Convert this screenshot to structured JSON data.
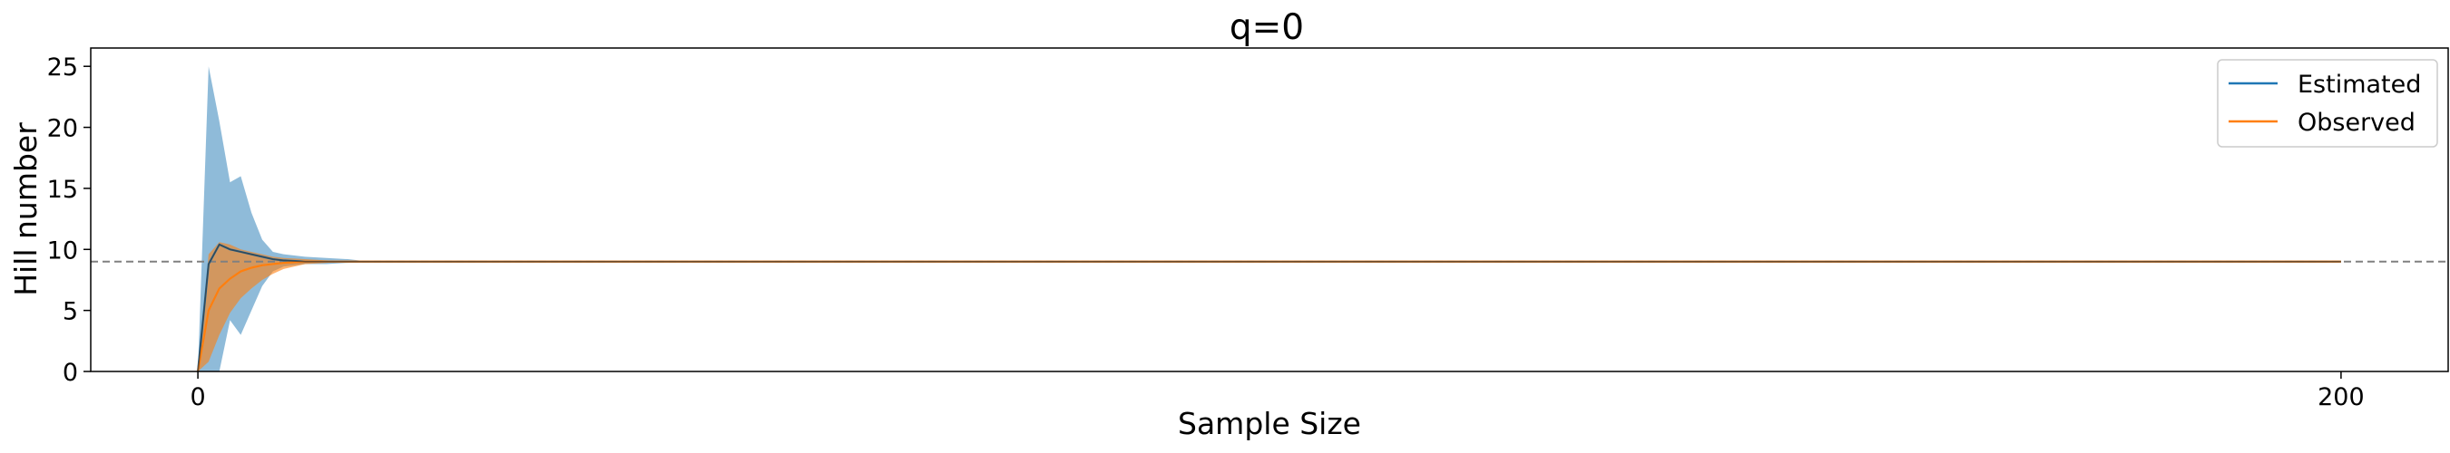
{
  "chart_data": {
    "type": "line",
    "title": "q=0",
    "xlabel": "Sample Size",
    "ylabel": "Hill number",
    "xlim": [
      -10,
      210
    ],
    "ylim": [
      0,
      26.5
    ],
    "xticks": [
      0,
      200
    ],
    "yticks": [
      0,
      5,
      10,
      15,
      20,
      25
    ],
    "reference_line": {
      "y": 9,
      "style": "dashed",
      "color": "#808080"
    },
    "legend": {
      "placement": "top-right",
      "entries": [
        "Estimated",
        "Observed"
      ]
    },
    "series": [
      {
        "name": "Estimated",
        "color": "#1f77b4",
        "band_color": "#1f77b4",
        "band_opacity": 0.5,
        "x": [
          0,
          1,
          2,
          3,
          4,
          5,
          6,
          7,
          8,
          10,
          12,
          14,
          16,
          200
        ],
        "y": [
          0,
          8.8,
          10.4,
          10.0,
          9.8,
          9.6,
          9.4,
          9.2,
          9.1,
          9.0,
          9.0,
          9.0,
          9.0,
          9.0
        ],
        "lower": [
          0,
          0,
          0,
          4.2,
          3.0,
          5.0,
          7.0,
          8.2,
          8.6,
          8.8,
          8.8,
          8.9,
          9.0,
          9.0
        ],
        "upper": [
          0,
          25.0,
          20.5,
          15.5,
          16.0,
          13.0,
          10.8,
          9.8,
          9.6,
          9.4,
          9.3,
          9.2,
          9.0,
          9.0
        ]
      },
      {
        "name": "Observed",
        "color": "#ff7f0e",
        "band_color": "#ff7f0e",
        "band_opacity": 0.6,
        "x": [
          0,
          1,
          2,
          3,
          4,
          5,
          6,
          7,
          8,
          10,
          12,
          14,
          200
        ],
        "y": [
          0,
          5.0,
          6.8,
          7.6,
          8.2,
          8.5,
          8.7,
          8.8,
          8.9,
          9.0,
          9.0,
          9.0,
          9.0
        ],
        "lower": [
          0,
          0.8,
          3.0,
          4.8,
          6.0,
          6.8,
          7.5,
          8.0,
          8.4,
          8.8,
          8.9,
          9.0,
          9.0
        ],
        "upper": [
          0,
          9.6,
          10.6,
          10.4,
          10.0,
          9.8,
          9.6,
          9.4,
          9.3,
          9.2,
          9.1,
          9.0,
          9.0
        ]
      }
    ]
  }
}
